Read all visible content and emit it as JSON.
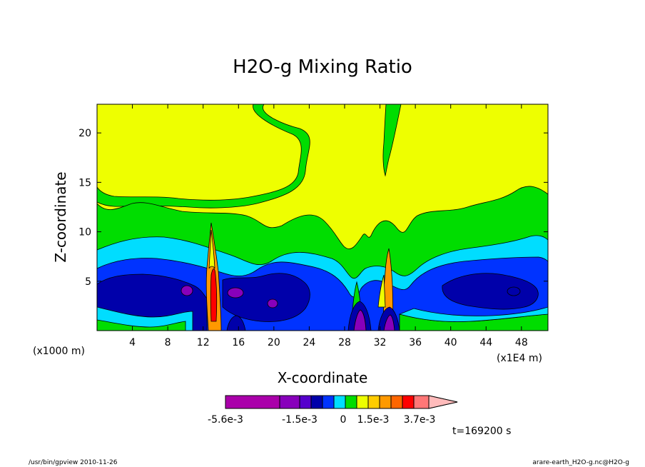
{
  "chart_data": {
    "type": "heatmap",
    "title": "H2O-g Mixing Ratio",
    "xlabel": "X-coordinate",
    "ylabel": "Z-coordinate",
    "x_unit_left": "(x1000 m)",
    "x_unit_right": "(x1E4 m)",
    "xlim": [
      0,
      51
    ],
    "ylim": [
      0,
      22.9
    ],
    "x_ticks": [
      4,
      8,
      12,
      16,
      20,
      24,
      28,
      32,
      36,
      40,
      44,
      48
    ],
    "y_ticks": [
      5,
      10,
      15,
      20
    ],
    "levels": [
      {
        "min": -0.0056,
        "color": "#aa00aa"
      },
      {
        "min": -0.0044,
        "color": "#8800bb"
      },
      {
        "min": -0.0032,
        "color": "#5500cc"
      },
      {
        "min": -0.002,
        "color": "#0000aa"
      },
      {
        "min": -0.0015,
        "color": "#0033ff"
      },
      {
        "min": -0.0009,
        "color": "#00ddff"
      },
      {
        "min": 0.0,
        "color": "#00dd00"
      },
      {
        "min": 0.0005,
        "color": "#eeff00"
      },
      {
        "min": 0.001,
        "color": "#ffcc00"
      },
      {
        "min": 0.0015,
        "color": "#ff9900"
      },
      {
        "min": 0.0022,
        "color": "#ff6600"
      },
      {
        "min": 0.003,
        "color": "#ff0000"
      },
      {
        "min": 0.0037,
        "color": "#ff7777"
      }
    ],
    "colorbar_labels": [
      "-5.6e-3",
      "-1.5e-3",
      "0",
      "1.5e-3",
      "3.7e-3"
    ],
    "time_label": "t=169200 s"
  },
  "footer": {
    "left": "/usr/bin/gpview   2010-11-26",
    "right": "arare-earth_H2O-g.nc@H2O-g"
  }
}
